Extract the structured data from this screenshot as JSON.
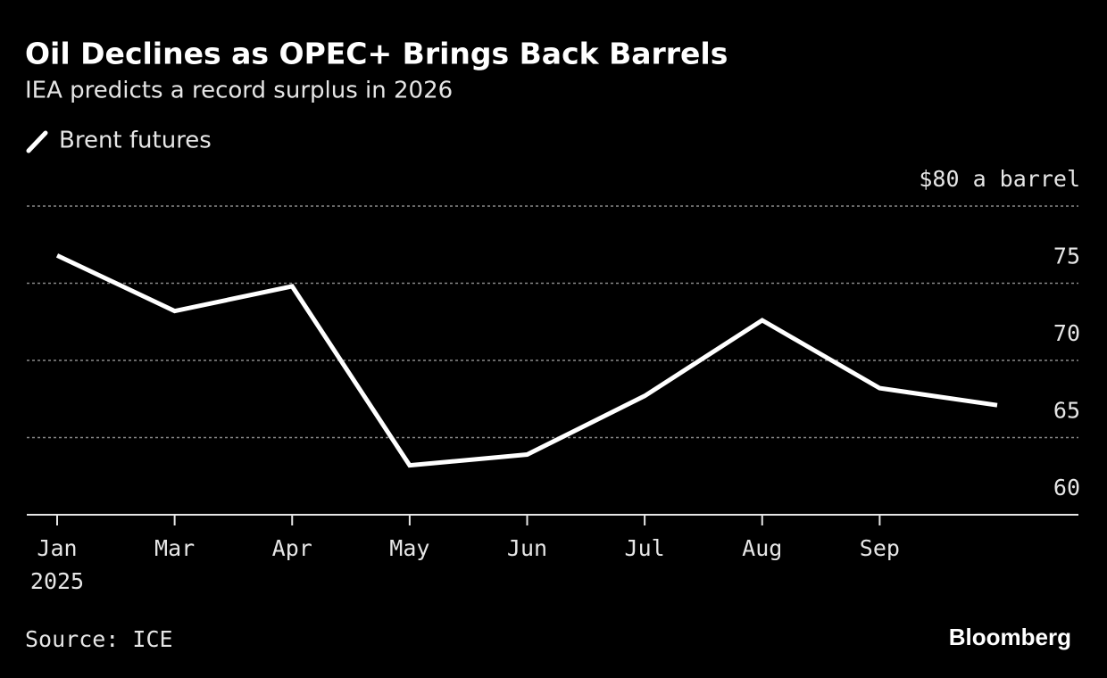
{
  "chart_data": {
    "type": "line",
    "title": "Oil Declines as OPEC+ Brings Back Barrels",
    "subtitle": "IEA predicts a record surplus in 2026",
    "categories": [
      "Jan",
      "Mar",
      "Apr",
      "May",
      "Jun",
      "Jul",
      "Aug",
      "Sep",
      null
    ],
    "x_sublabel": "2025",
    "series": [
      {
        "name": "Brent futures",
        "color": "#ffffff",
        "values": [
          76.8,
          73.2,
          74.8,
          63.2,
          63.9,
          67.7,
          72.6,
          68.2,
          67.1
        ]
      }
    ],
    "ylim": [
      60,
      80
    ],
    "yticks": [
      60,
      65,
      70,
      75,
      {
        "value": 80,
        "label": "$80 a barrel"
      }
    ],
    "grid": true,
    "source": "Source: ICE",
    "brand": "Bloomberg"
  }
}
